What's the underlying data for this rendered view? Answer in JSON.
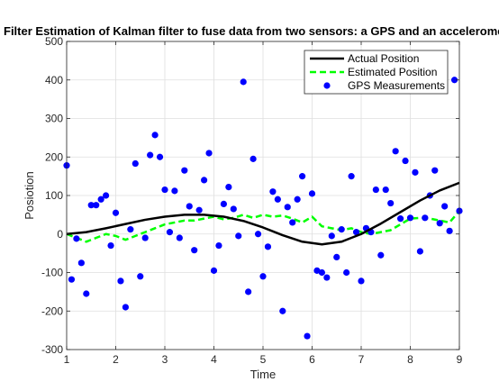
{
  "chart_data": {
    "type": "line",
    "title": "Filter Estimation of Kalman filter to fuse data from two sensors: a GPS and an accelerometer",
    "xlabel": "Time",
    "ylabel": "Posiotion",
    "xlim": [
      1,
      9
    ],
    "ylim": [
      -300,
      500
    ],
    "xticks": [
      1,
      2,
      3,
      4,
      5,
      6,
      7,
      8,
      9
    ],
    "yticks": [
      -300,
      -200,
      -100,
      0,
      100,
      200,
      300,
      400,
      500
    ],
    "grid": true,
    "legend_position": "top-right",
    "series": [
      {
        "name": "Actual Position",
        "style": "solid",
        "color": "#000000",
        "x": [
          1.0,
          1.4,
          1.8,
          2.2,
          2.6,
          3.0,
          3.4,
          3.8,
          4.2,
          4.6,
          5.0,
          5.4,
          5.8,
          6.2,
          6.6,
          7.0,
          7.4,
          7.8,
          8.2,
          8.6,
          9.0
        ],
        "y": [
          0,
          5,
          15,
          26,
          37,
          45,
          50,
          50,
          45,
          34,
          17,
          -3,
          -20,
          -27,
          -20,
          0,
          27,
          57,
          87,
          113,
          133
        ]
      },
      {
        "name": "Estimated Position",
        "style": "dashed",
        "color": "#00ff00",
        "x": [
          1.0,
          1.2,
          1.4,
          1.6,
          1.8,
          2.0,
          2.2,
          2.4,
          2.6,
          2.8,
          3.0,
          3.2,
          3.4,
          3.6,
          3.8,
          4.0,
          4.2,
          4.4,
          4.6,
          4.8,
          5.0,
          5.2,
          5.4,
          5.6,
          5.8,
          6.0,
          6.2,
          6.4,
          6.6,
          6.8,
          7.0,
          7.2,
          7.4,
          7.6,
          7.8,
          8.0,
          8.2,
          8.4,
          8.6,
          8.8,
          9.0
        ],
        "y": [
          0,
          -10,
          -20,
          -10,
          0,
          -5,
          -15,
          -5,
          5,
          15,
          25,
          30,
          35,
          35,
          40,
          45,
          38,
          42,
          50,
          42,
          50,
          45,
          48,
          40,
          30,
          45,
          20,
          15,
          10,
          15,
          5,
          0,
          5,
          10,
          25,
          40,
          42,
          40,
          35,
          30,
          60
        ]
      },
      {
        "name": "GPS Measurements",
        "style": "markers",
        "color": "#0000ff",
        "x": [
          1.0,
          1.1,
          1.2,
          1.3,
          1.4,
          1.5,
          1.6,
          1.7,
          1.8,
          1.9,
          2.0,
          2.1,
          2.2,
          2.3,
          2.4,
          2.5,
          2.6,
          2.7,
          2.8,
          2.9,
          3.0,
          3.1,
          3.2,
          3.3,
          3.4,
          3.5,
          3.6,
          3.7,
          3.8,
          3.9,
          4.0,
          4.1,
          4.2,
          4.3,
          4.4,
          4.5,
          4.6,
          4.7,
          4.8,
          4.9,
          5.0,
          5.1,
          5.2,
          5.3,
          5.4,
          5.5,
          5.6,
          5.7,
          5.8,
          5.9,
          6.0,
          6.1,
          6.2,
          6.3,
          6.4,
          6.5,
          6.6,
          6.7,
          6.8,
          6.9,
          7.0,
          7.1,
          7.2,
          7.3,
          7.4,
          7.5,
          7.6,
          7.7,
          7.8,
          7.9,
          8.0,
          8.1,
          8.2,
          8.3,
          8.4,
          8.5,
          8.6,
          8.7,
          8.8,
          8.9,
          9.0
        ],
        "y": [
          178,
          -118,
          -12,
          -75,
          -155,
          75,
          75,
          90,
          100,
          -30,
          55,
          -122,
          -190,
          12,
          183,
          -110,
          -10,
          205,
          257,
          200,
          115,
          5,
          112,
          -10,
          165,
          72,
          -42,
          62,
          140,
          210,
          -95,
          -30,
          78,
          122,
          65,
          -5,
          395,
          -150,
          195,
          0,
          -110,
          -33,
          110,
          90,
          -200,
          70,
          30,
          90,
          150,
          -265,
          105,
          -95,
          -100,
          -113,
          -5,
          -60,
          12,
          -100,
          150,
          5,
          -122,
          15,
          5,
          115,
          -55,
          115,
          80,
          215,
          40,
          190,
          42,
          160,
          -45,
          42,
          100,
          165,
          28,
          72,
          8,
          400,
          60
        ]
      }
    ]
  },
  "legend": {
    "entries": [
      "Actual Position",
      "Estimated Position",
      "GPS Measurements"
    ]
  }
}
